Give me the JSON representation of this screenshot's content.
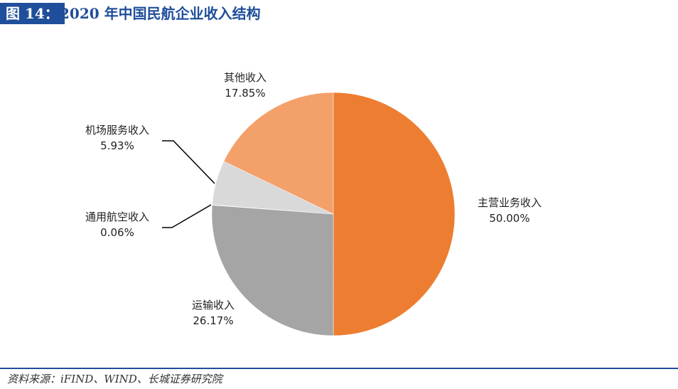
{
  "figure_label": "图 14：",
  "chart_data": {
    "type": "pie",
    "title": "2020 年中国民航企业收入结构",
    "categories": [
      "主营业务收入",
      "运输收入",
      "通用航空收入",
      "机场服务收入",
      "其他收入"
    ],
    "values": [
      50.0,
      26.17,
      0.06,
      5.93,
      17.85
    ],
    "value_labels": [
      "50.00%",
      "26.17%",
      "0.06%",
      "5.93%",
      "17.85%"
    ],
    "colors": [
      "#ED7D31",
      "#A5A5A5",
      "#F8CBAD",
      "#D9D9D9",
      "#F4A06A"
    ]
  },
  "source": "资料来源：iFIND、WIND、长城证券研究院"
}
